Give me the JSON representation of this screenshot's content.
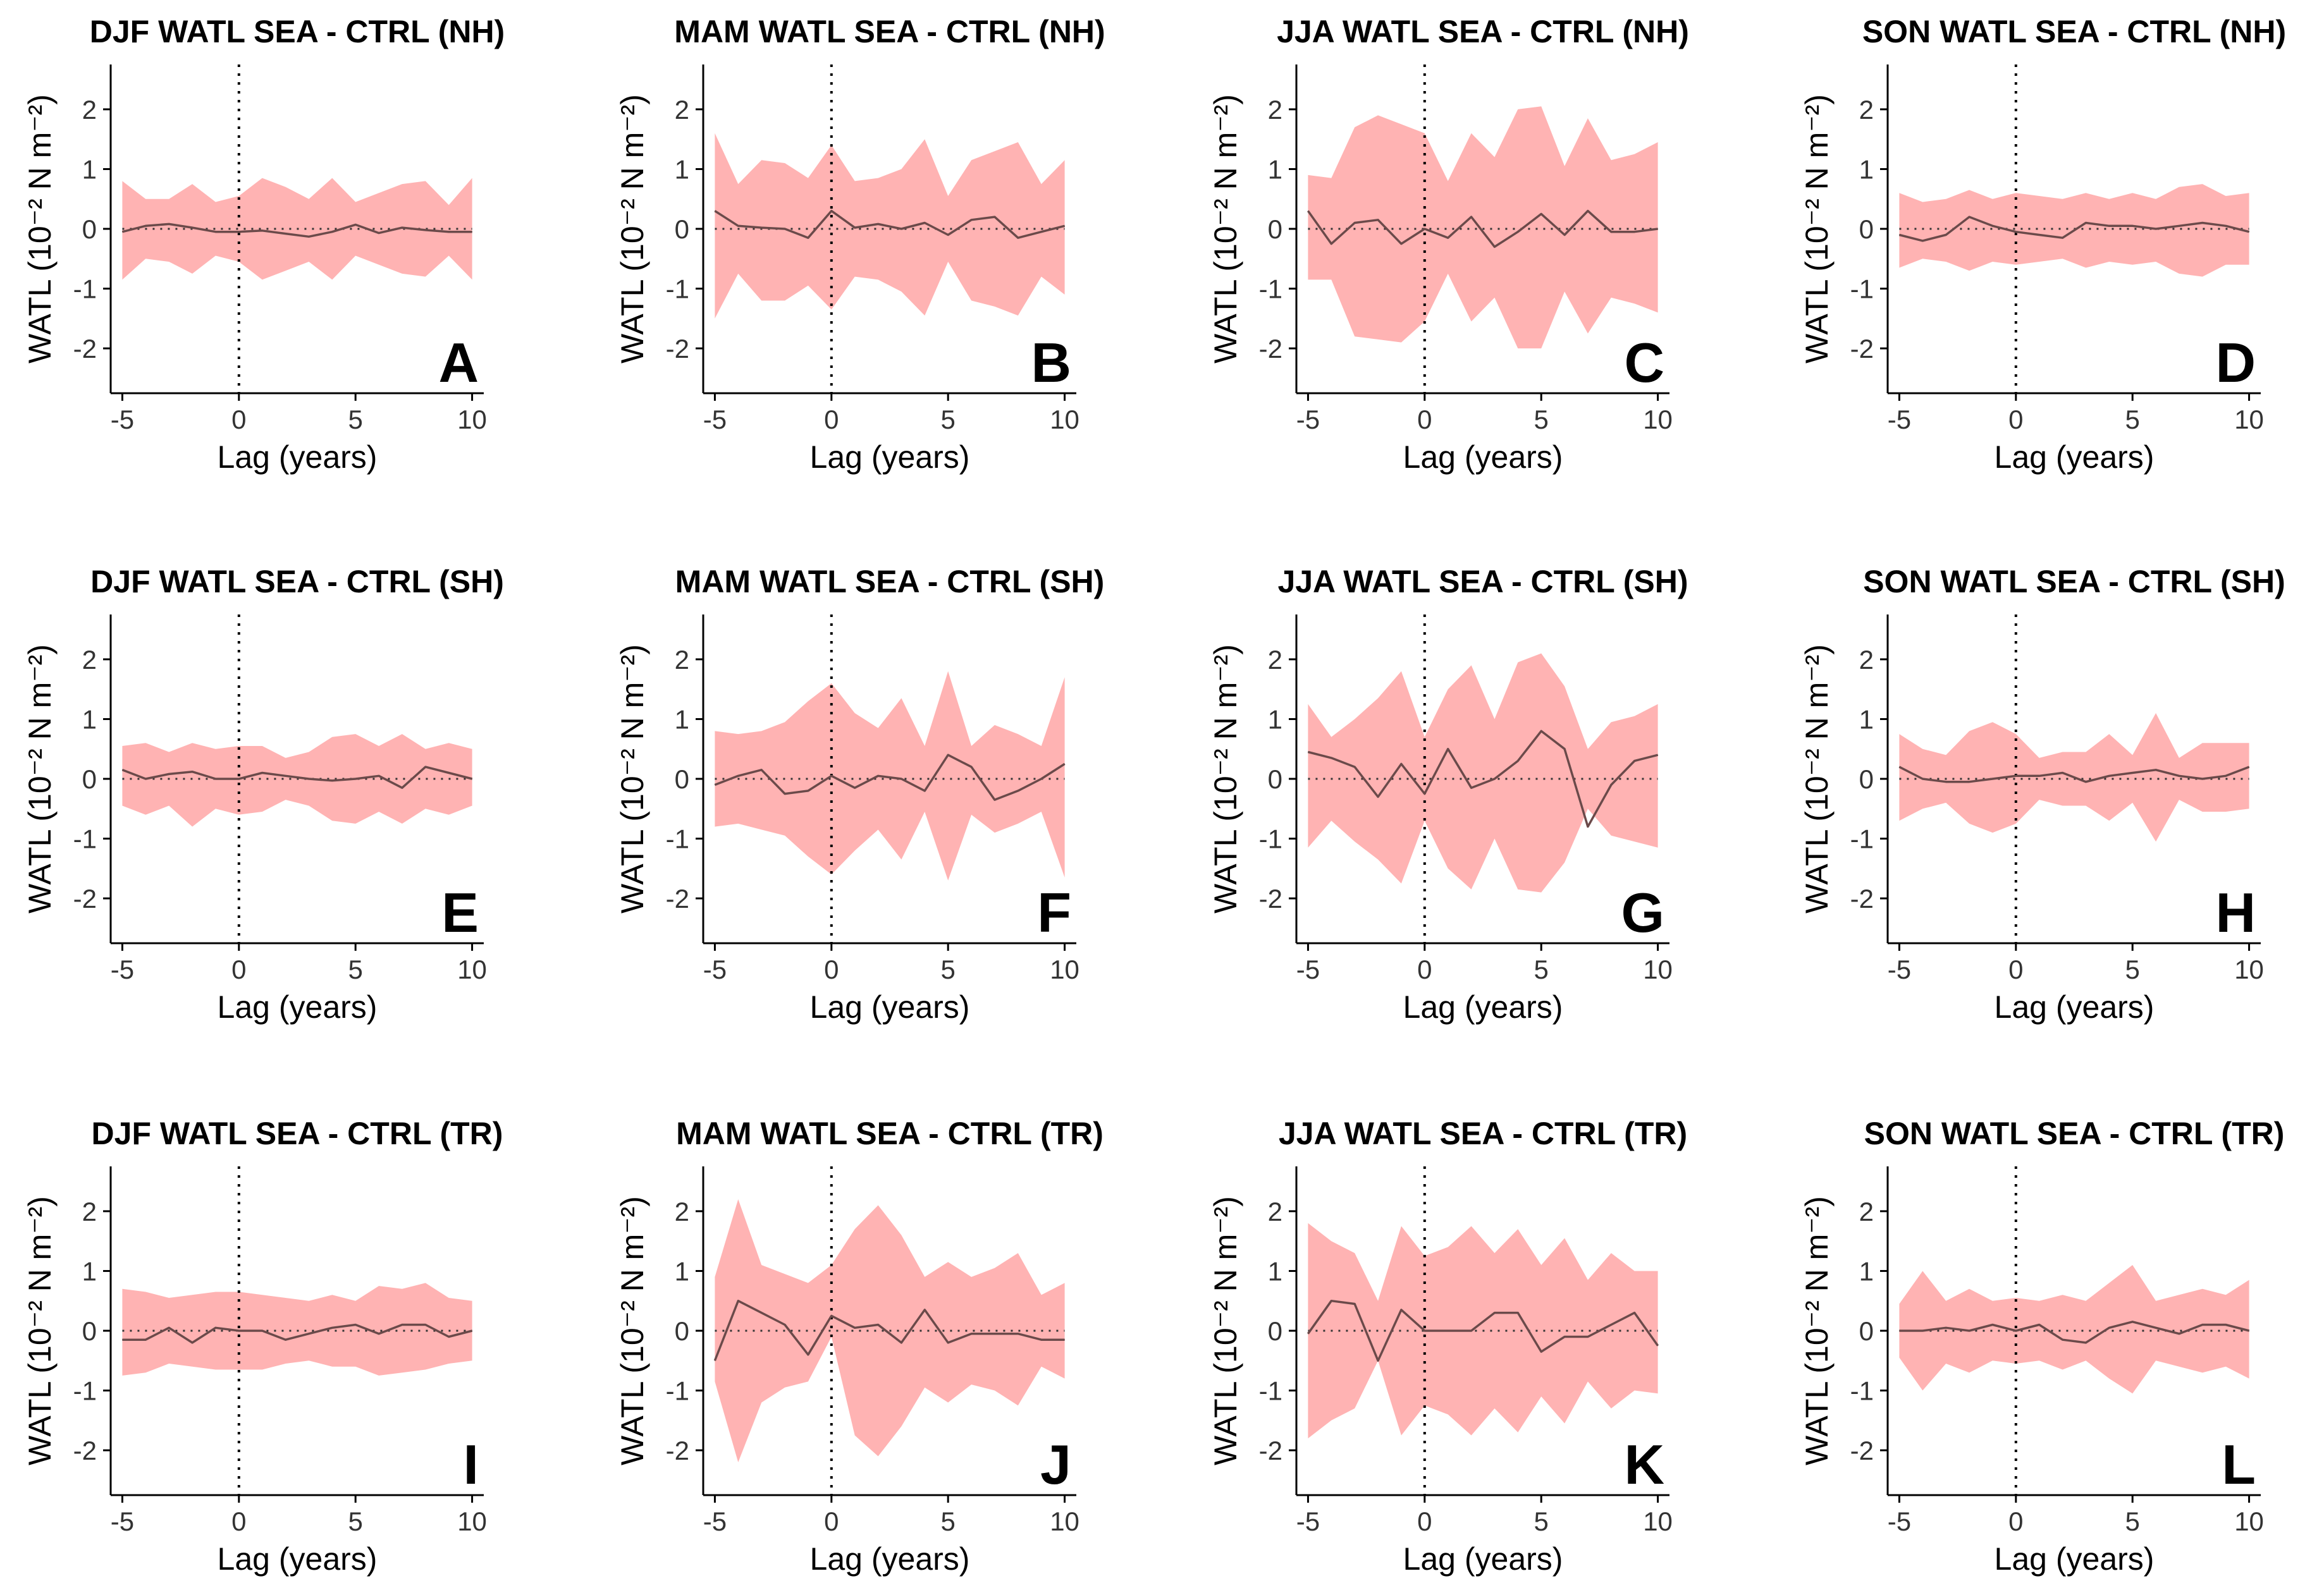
{
  "figure": {
    "xlabel": "Lag (years)",
    "ylabel": "WATL (10⁻² N m⁻²)",
    "xticks": [
      -5,
      0,
      5,
      10
    ],
    "yticks": [
      -2,
      -1,
      0,
      1,
      2
    ],
    "xlim": [
      -5.5,
      10.5
    ],
    "ylim": [
      -2.75,
      2.75
    ]
  },
  "colors": {
    "band": "#ffb3b3",
    "line": "#6b4a4a"
  },
  "chart_data": [
    {
      "type": "area",
      "letter": "A",
      "title": "DJF WATL SEA - CTRL (NH)",
      "xlabel": "Lag (years)",
      "ylabel": "WATL (10⁻² N m⁻²)",
      "x": [
        -5,
        -4,
        -3,
        -2,
        -1,
        0,
        1,
        2,
        3,
        4,
        5,
        6,
        7,
        8,
        9,
        10
      ],
      "mean": [
        -0.05,
        0.05,
        0.08,
        0.02,
        -0.05,
        -0.05,
        -0.03,
        -0.08,
        -0.13,
        -0.05,
        0.07,
        -0.07,
        0.02,
        -0.02,
        -0.05,
        -0.05
      ],
      "upper": [
        0.8,
        0.5,
        0.5,
        0.75,
        0.45,
        0.55,
        0.85,
        0.7,
        0.5,
        0.85,
        0.45,
        0.6,
        0.75,
        0.8,
        0.4,
        0.85
      ],
      "lower": [
        -0.85,
        -0.5,
        -0.55,
        -0.75,
        -0.45,
        -0.55,
        -0.85,
        -0.7,
        -0.55,
        -0.85,
        -0.45,
        -0.6,
        -0.75,
        -0.8,
        -0.45,
        -0.85
      ]
    },
    {
      "type": "area",
      "letter": "B",
      "title": "MAM WATL SEA - CTRL (NH)",
      "xlabel": "Lag (years)",
      "ylabel": "WATL (10⁻² N m⁻²)",
      "x": [
        -5,
        -4,
        -3,
        -2,
        -1,
        0,
        1,
        2,
        3,
        4,
        5,
        6,
        7,
        8,
        9,
        10
      ],
      "mean": [
        0.3,
        0.05,
        0.02,
        0.0,
        -0.15,
        0.3,
        0.02,
        0.08,
        0.0,
        0.1,
        -0.1,
        0.15,
        0.2,
        -0.15,
        -0.05,
        0.05
      ],
      "upper": [
        1.6,
        0.75,
        1.15,
        1.1,
        0.85,
        1.4,
        0.8,
        0.85,
        1.0,
        1.5,
        0.55,
        1.15,
        1.3,
        1.45,
        0.75,
        1.15
      ],
      "lower": [
        -1.5,
        -0.75,
        -1.2,
        -1.2,
        -0.95,
        -1.35,
        -0.8,
        -0.85,
        -1.05,
        -1.45,
        -0.55,
        -1.2,
        -1.3,
        -1.45,
        -0.8,
        -1.1
      ]
    },
    {
      "type": "area",
      "letter": "C",
      "title": "JJA WATL SEA - CTRL (NH)",
      "xlabel": "Lag (years)",
      "ylabel": "WATL (10⁻² N m⁻²)",
      "x": [
        -5,
        -4,
        -3,
        -2,
        -1,
        0,
        1,
        2,
        3,
        4,
        5,
        6,
        7,
        8,
        9,
        10
      ],
      "mean": [
        0.3,
        -0.25,
        0.1,
        0.15,
        -0.25,
        0.0,
        -0.15,
        0.2,
        -0.3,
        -0.05,
        0.25,
        -0.1,
        0.3,
        -0.05,
        -0.05,
        0.0
      ],
      "upper": [
        0.9,
        0.85,
        1.7,
        1.9,
        1.75,
        1.6,
        0.8,
        1.6,
        1.2,
        2.0,
        2.05,
        1.05,
        1.85,
        1.15,
        1.25,
        1.45
      ],
      "lower": [
        -0.85,
        -0.85,
        -1.8,
        -1.85,
        -1.9,
        -1.55,
        -0.75,
        -1.55,
        -1.15,
        -2.0,
        -2.0,
        -1.05,
        -1.75,
        -1.15,
        -1.25,
        -1.4
      ]
    },
    {
      "type": "area",
      "letter": "D",
      "title": "SON WATL SEA - CTRL (NH)",
      "xlabel": "Lag (years)",
      "ylabel": "WATL (10⁻² N m⁻²)",
      "x": [
        -5,
        -4,
        -3,
        -2,
        -1,
        0,
        1,
        2,
        3,
        4,
        5,
        6,
        7,
        8,
        9,
        10
      ],
      "mean": [
        -0.1,
        -0.2,
        -0.1,
        0.2,
        0.05,
        -0.05,
        -0.1,
        -0.15,
        0.1,
        0.05,
        0.05,
        0.0,
        0.05,
        0.1,
        0.05,
        -0.05
      ],
      "upper": [
        0.6,
        0.45,
        0.5,
        0.65,
        0.5,
        0.6,
        0.55,
        0.5,
        0.6,
        0.5,
        0.6,
        0.5,
        0.7,
        0.75,
        0.55,
        0.6
      ],
      "lower": [
        -0.65,
        -0.5,
        -0.55,
        -0.7,
        -0.55,
        -0.6,
        -0.55,
        -0.5,
        -0.65,
        -0.55,
        -0.6,
        -0.55,
        -0.75,
        -0.8,
        -0.6,
        -0.6
      ]
    },
    {
      "type": "area",
      "letter": "E",
      "title": "DJF WATL SEA - CTRL (SH)",
      "xlabel": "Lag (years)",
      "ylabel": "WATL (10⁻² N m⁻²)",
      "x": [
        -5,
        -4,
        -3,
        -2,
        -1,
        0,
        1,
        2,
        3,
        4,
        5,
        6,
        7,
        8,
        9,
        10
      ],
      "mean": [
        0.15,
        0.0,
        0.08,
        0.12,
        0.0,
        0.0,
        0.1,
        0.05,
        0.0,
        -0.03,
        0.0,
        0.05,
        -0.15,
        0.2,
        0.1,
        0.0
      ],
      "upper": [
        0.55,
        0.6,
        0.45,
        0.6,
        0.5,
        0.55,
        0.55,
        0.35,
        0.45,
        0.7,
        0.75,
        0.55,
        0.75,
        0.5,
        0.6,
        0.5
      ],
      "lower": [
        -0.45,
        -0.6,
        -0.45,
        -0.8,
        -0.5,
        -0.6,
        -0.55,
        -0.35,
        -0.45,
        -0.7,
        -0.75,
        -0.55,
        -0.75,
        -0.5,
        -0.6,
        -0.45
      ]
    },
    {
      "type": "area",
      "letter": "F",
      "title": "MAM WATL SEA - CTRL (SH)",
      "xlabel": "Lag (years)",
      "ylabel": "WATL (10⁻² N m⁻²)",
      "x": [
        -5,
        -4,
        -3,
        -2,
        -1,
        0,
        1,
        2,
        3,
        4,
        5,
        6,
        7,
        8,
        9,
        10
      ],
      "mean": [
        -0.1,
        0.05,
        0.15,
        -0.25,
        -0.2,
        0.05,
        -0.15,
        0.05,
        0.0,
        -0.2,
        0.4,
        0.2,
        -0.35,
        -0.2,
        0.0,
        0.25
      ],
      "upper": [
        0.8,
        0.75,
        0.8,
        0.95,
        1.3,
        1.6,
        1.1,
        0.85,
        1.35,
        0.55,
        1.8,
        0.55,
        0.9,
        0.75,
        0.55,
        1.7
      ],
      "lower": [
        -0.8,
        -0.75,
        -0.85,
        -0.95,
        -1.3,
        -1.6,
        -1.2,
        -0.85,
        -1.35,
        -0.55,
        -1.7,
        -0.6,
        -0.9,
        -0.75,
        -0.55,
        -1.65
      ]
    },
    {
      "type": "area",
      "letter": "G",
      "title": "JJA WATL SEA - CTRL (SH)",
      "xlabel": "Lag (years)",
      "ylabel": "WATL (10⁻² N m⁻²)",
      "x": [
        -5,
        -4,
        -3,
        -2,
        -1,
        0,
        1,
        2,
        3,
        4,
        5,
        6,
        7,
        8,
        9,
        10
      ],
      "mean": [
        0.45,
        0.35,
        0.2,
        -0.3,
        0.25,
        -0.25,
        0.5,
        -0.15,
        0.0,
        0.3,
        0.8,
        0.5,
        -0.8,
        -0.1,
        0.3,
        0.4
      ],
      "upper": [
        1.25,
        0.7,
        1.0,
        1.35,
        1.8,
        0.7,
        1.5,
        1.9,
        1.0,
        1.95,
        2.1,
        1.55,
        0.5,
        0.95,
        1.05,
        1.25
      ],
      "lower": [
        -1.15,
        -0.7,
        -1.05,
        -1.35,
        -1.75,
        -0.7,
        -1.5,
        -1.85,
        -1.0,
        -1.85,
        -1.9,
        -1.4,
        -0.5,
        -0.95,
        -1.05,
        -1.15
      ]
    },
    {
      "type": "area",
      "letter": "H",
      "title": "SON WATL SEA - CTRL (SH)",
      "xlabel": "Lag (years)",
      "ylabel": "WATL (10⁻² N m⁻²)",
      "x": [
        -5,
        -4,
        -3,
        -2,
        -1,
        0,
        1,
        2,
        3,
        4,
        5,
        6,
        7,
        8,
        9,
        10
      ],
      "mean": [
        0.2,
        0.0,
        -0.05,
        -0.05,
        0.0,
        0.05,
        0.05,
        0.1,
        -0.05,
        0.05,
        0.1,
        0.15,
        0.05,
        0.0,
        0.05,
        0.2
      ],
      "upper": [
        0.75,
        0.5,
        0.4,
        0.8,
        0.95,
        0.75,
        0.35,
        0.45,
        0.45,
        0.75,
        0.4,
        1.1,
        0.35,
        0.6,
        0.6,
        0.6
      ],
      "lower": [
        -0.7,
        -0.5,
        -0.4,
        -0.75,
        -0.9,
        -0.75,
        -0.35,
        -0.45,
        -0.45,
        -0.7,
        -0.4,
        -1.05,
        -0.35,
        -0.55,
        -0.55,
        -0.5
      ]
    },
    {
      "type": "area",
      "letter": "I",
      "title": "DJF WATL SEA - CTRL (TR)",
      "xlabel": "Lag (years)",
      "ylabel": "WATL (10⁻² N m⁻²)",
      "x": [
        -5,
        -4,
        -3,
        -2,
        -1,
        0,
        1,
        2,
        3,
        4,
        5,
        6,
        7,
        8,
        9,
        10
      ],
      "mean": [
        -0.15,
        -0.15,
        0.05,
        -0.2,
        0.05,
        0.0,
        0.0,
        -0.15,
        -0.05,
        0.05,
        0.1,
        -0.05,
        0.1,
        0.1,
        -0.1,
        0.0
      ],
      "upper": [
        0.7,
        0.65,
        0.55,
        0.6,
        0.65,
        0.65,
        0.6,
        0.55,
        0.5,
        0.6,
        0.5,
        0.75,
        0.7,
        0.8,
        0.55,
        0.5
      ],
      "lower": [
        -0.75,
        -0.7,
        -0.55,
        -0.6,
        -0.65,
        -0.65,
        -0.65,
        -0.55,
        -0.5,
        -0.6,
        -0.6,
        -0.75,
        -0.7,
        -0.65,
        -0.55,
        -0.5
      ]
    },
    {
      "type": "area",
      "letter": "J",
      "title": "MAM WATL SEA - CTRL (TR)",
      "xlabel": "Lag (years)",
      "ylabel": "WATL (10⁻² N m⁻²)",
      "x": [
        -5,
        -4,
        -3,
        -2,
        -1,
        0,
        1,
        2,
        3,
        4,
        5,
        6,
        7,
        8,
        9,
        10
      ],
      "mean": [
        -0.5,
        0.5,
        0.3,
        0.1,
        -0.4,
        0.25,
        0.05,
        0.1,
        -0.2,
        0.35,
        -0.2,
        -0.05,
        -0.05,
        -0.05,
        -0.15,
        -0.15
      ],
      "upper": [
        0.9,
        2.2,
        1.1,
        0.95,
        0.8,
        1.1,
        1.7,
        2.1,
        1.6,
        0.9,
        1.15,
        0.9,
        1.05,
        1.3,
        0.6,
        0.8
      ],
      "lower": [
        -0.85,
        -2.2,
        -1.2,
        -0.95,
        -0.85,
        -0.1,
        -1.75,
        -2.1,
        -1.6,
        -0.95,
        -1.2,
        -0.9,
        -1.0,
        -1.25,
        -0.6,
        -0.8
      ]
    },
    {
      "type": "area",
      "letter": "K",
      "title": "JJA WATL SEA - CTRL (TR)",
      "xlabel": "Lag (years)",
      "ylabel": "WATL (10⁻² N m⁻²)",
      "x": [
        -5,
        -4,
        -3,
        -2,
        -1,
        0,
        1,
        2,
        3,
        4,
        5,
        6,
        7,
        8,
        9,
        10
      ],
      "mean": [
        -0.05,
        0.5,
        0.45,
        -0.5,
        0.35,
        0.0,
        0.0,
        0.0,
        0.3,
        0.3,
        -0.35,
        -0.1,
        -0.1,
        0.1,
        0.3,
        -0.25
      ],
      "upper": [
        1.8,
        1.5,
        1.3,
        0.5,
        1.75,
        1.25,
        1.4,
        1.75,
        1.3,
        1.7,
        1.1,
        1.55,
        0.85,
        1.3,
        1.0,
        1.0
      ],
      "lower": [
        -1.8,
        -1.5,
        -1.3,
        -0.5,
        -1.75,
        -1.25,
        -1.4,
        -1.75,
        -1.3,
        -1.7,
        -1.1,
        -1.55,
        -0.85,
        -1.3,
        -1.0,
        -1.05
      ]
    },
    {
      "type": "area",
      "letter": "L",
      "title": "SON WATL SEA - CTRL (TR)",
      "xlabel": "Lag (years)",
      "ylabel": "WATL (10⁻² N m⁻²)",
      "x": [
        -5,
        -4,
        -3,
        -2,
        -1,
        0,
        1,
        2,
        3,
        4,
        5,
        6,
        7,
        8,
        9,
        10
      ],
      "mean": [
        0.0,
        0.0,
        0.05,
        0.0,
        0.1,
        0.0,
        0.1,
        -0.15,
        -0.2,
        0.05,
        0.15,
        0.05,
        -0.05,
        0.1,
        0.1,
        0.0
      ],
      "upper": [
        0.45,
        1.0,
        0.5,
        0.7,
        0.5,
        0.55,
        0.5,
        0.6,
        0.5,
        0.8,
        1.1,
        0.5,
        0.6,
        0.7,
        0.6,
        0.85
      ],
      "lower": [
        -0.45,
        -1.0,
        -0.55,
        -0.7,
        -0.5,
        -0.55,
        -0.5,
        -0.65,
        -0.5,
        -0.8,
        -1.05,
        -0.5,
        -0.6,
        -0.7,
        -0.6,
        -0.8
      ]
    }
  ]
}
